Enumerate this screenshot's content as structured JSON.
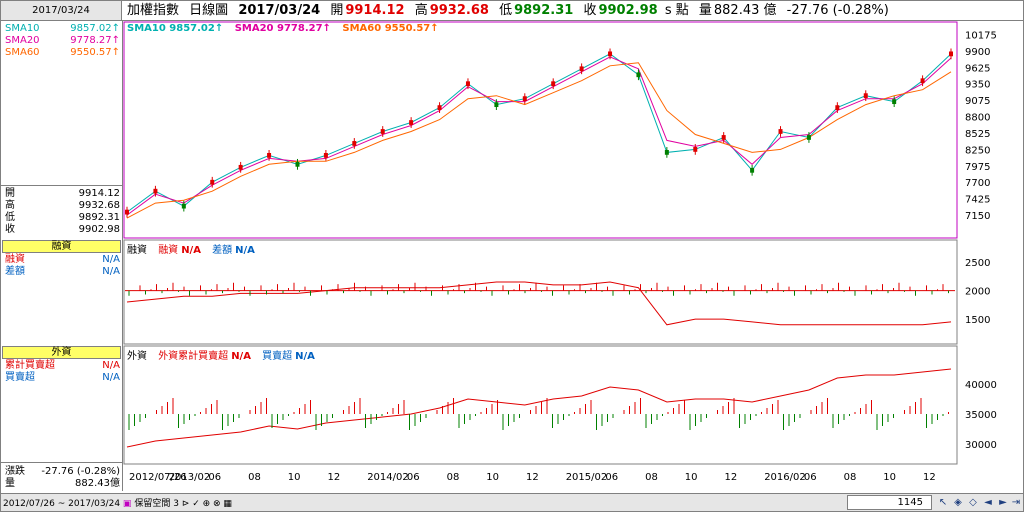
{
  "header": {
    "date": "2017/03/24",
    "name": "加權指數",
    "period": "日線圖",
    "bar_date": "2017/03/24",
    "open_label": "開",
    "open": "9914.12",
    "high_label": "高",
    "high": "9932.68",
    "low_label": "低",
    "low": "9892.31",
    "close_label": "收",
    "close": "9902.98",
    "unit": "s 點",
    "volume_label": "量",
    "volume": "882.43 億",
    "change": "-27.76 (-0.28%)"
  },
  "left_panel": {
    "sma": [
      {
        "label": "SMA10",
        "value": "9857.02↑",
        "color": "#00b0b0"
      },
      {
        "label": "SMA20",
        "value": "9778.27↑",
        "color": "#e000a0"
      },
      {
        "label": "SMA60",
        "value": "9550.57↑",
        "color": "#ff6600"
      }
    ],
    "ohlc": [
      {
        "label": "開",
        "value": "9914.12"
      },
      {
        "label": "高",
        "value": "9932.68"
      },
      {
        "label": "低",
        "value": "9892.31"
      },
      {
        "label": "收",
        "value": "9902.98"
      }
    ],
    "margin_title": "融資",
    "margin_rows": [
      {
        "label": "融資",
        "value": "N/A",
        "color": "#e00000"
      },
      {
        "label": "差額",
        "value": "N/A",
        "color": "#0060c0"
      }
    ],
    "foreign_title": "外資",
    "foreign_rows": [
      {
        "label": "累計買賣超",
        "value": "N/A",
        "color": "#e00000"
      },
      {
        "label": "買賣超",
        "value": "N/A",
        "color": "#0060c0"
      }
    ],
    "change_label": "漲跌",
    "change_value": "-27.76 (-0.28%)",
    "volume_label": "量",
    "volume_value": "882.43億"
  },
  "price_legend": [
    {
      "text": "SMA10 9857.02↑",
      "color": "#00b0b0"
    },
    {
      "text": "SMA20 9778.27↑",
      "color": "#e000a0"
    },
    {
      "text": "SMA60 9550.57↑",
      "color": "#ff6600"
    }
  ],
  "margin_legend": {
    "title": "融資",
    "a_label": "融資",
    "a_value": "N/A",
    "b_label": "差額",
    "b_value": "N/A"
  },
  "foreign_legend": {
    "title": "外資",
    "a_label": "外資累計買賣超",
    "a_value": "N/A",
    "b_label": "買賣超",
    "b_value": "N/A"
  },
  "footer": {
    "range_start": "2012/07/26",
    "range_sep": "~",
    "range_end": "2017/03/24",
    "save_space": "保留空間",
    "save_space_value": "3",
    "bar_count": "1145"
  },
  "colors": {
    "up": "#e00000",
    "down": "#008000",
    "sma10": "#00b0b0",
    "sma20": "#e000a0",
    "sma60": "#ff6600",
    "accent_border": "#c000c0"
  },
  "chart_data": [
    {
      "type": "line",
      "title": "加權指數 日線圖",
      "y_ticks": [
        10175,
        9900,
        9625,
        9350,
        9075,
        8800,
        8525,
        8250,
        7975,
        7700,
        7425,
        7150
      ],
      "ylim": [
        6850,
        10300
      ],
      "x_tick_labels": [
        "2012/07/26",
        "2013/02",
        "06",
        "08",
        "10",
        "12",
        "2014/02",
        "06",
        "08",
        "10",
        "12",
        "2015/02",
        "06",
        "08",
        "10",
        "12",
        "2016/02",
        "06",
        "08",
        "10",
        "12"
      ],
      "x": [
        "2012/07",
        "2012/09",
        "2012/11",
        "2013/01",
        "2013/03",
        "2013/05",
        "2013/07",
        "2013/09",
        "2013/11",
        "2014/01",
        "2014/03",
        "2014/05",
        "2014/07",
        "2014/09",
        "2014/11",
        "2015/01",
        "2015/03",
        "2015/04",
        "2015/06",
        "2015/08",
        "2015/09",
        "2015/11",
        "2016/01",
        "2016/03",
        "2016/05",
        "2016/07",
        "2016/09",
        "2016/11",
        "2017/01",
        "2017/03"
      ],
      "series": [
        {
          "name": "SMA10",
          "values": [
            7200,
            7550,
            7300,
            7700,
            7950,
            8150,
            8000,
            8150,
            8350,
            8550,
            8700,
            8950,
            9350,
            9000,
            9100,
            9350,
            9600,
            9850,
            9500,
            8200,
            8250,
            8450,
            7900,
            8550,
            8450,
            8950,
            9150,
            9050,
            9400,
            9850
          ]
        },
        {
          "name": "SMA20",
          "values": [
            7150,
            7500,
            7350,
            7650,
            7900,
            8100,
            8050,
            8100,
            8300,
            8500,
            8650,
            8900,
            9300,
            9050,
            9050,
            9300,
            9550,
            9800,
            9600,
            8400,
            8300,
            8400,
            8000,
            8450,
            8500,
            8900,
            9100,
            9100,
            9350,
            9780
          ]
        },
        {
          "name": "SMA60",
          "values": [
            7100,
            7350,
            7400,
            7550,
            7800,
            8000,
            8050,
            8050,
            8200,
            8400,
            8550,
            8750,
            9100,
            9150,
            9000,
            9200,
            9400,
            9650,
            9700,
            8900,
            8500,
            8350,
            8200,
            8250,
            8450,
            8750,
            9000,
            9150,
            9250,
            9550
          ]
        }
      ]
    },
    {
      "type": "line",
      "title": "融資",
      "y_ticks": [
        2500,
        2000,
        1500
      ],
      "ylim": [
        1150,
        2800
      ],
      "series": [
        {
          "name": "融資",
          "values": [
            1800,
            1850,
            1900,
            1900,
            1950,
            1950,
            1950,
            2000,
            2050,
            2050,
            2050,
            2050,
            2100,
            2150,
            2150,
            2100,
            2100,
            2150,
            2050,
            1400,
            1500,
            1500,
            1450,
            1400,
            1400,
            1400,
            1400,
            1400,
            1400,
            1450
          ]
        }
      ]
    },
    {
      "type": "line",
      "title": "外資",
      "y_ticks": [
        40000,
        35000,
        30000
      ],
      "ylim": [
        27500,
        45500
      ],
      "series": [
        {
          "name": "外資累計買賣超",
          "values": [
            29500,
            30500,
            31000,
            31500,
            32000,
            33000,
            32500,
            33500,
            34000,
            34500,
            35000,
            36000,
            37500,
            37000,
            36500,
            37500,
            38000,
            39500,
            39000,
            37000,
            37500,
            37500,
            37000,
            38000,
            39000,
            41000,
            41500,
            41500,
            42000,
            42500
          ]
        }
      ]
    }
  ]
}
